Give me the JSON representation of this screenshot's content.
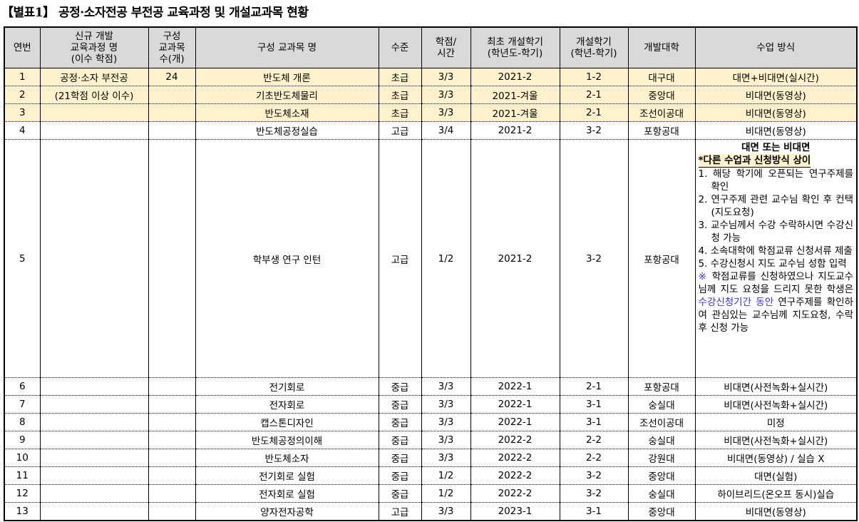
{
  "title": "【별표1】 공정·소자전공 부전공 교육과정 및 개설교과목 현황",
  "headers": {
    "no": "연번",
    "program": [
      "신규 개발",
      "교육과정 명",
      "(이수 학점)"
    ],
    "count": [
      "구성",
      "교과목",
      "수(개)"
    ],
    "course": "구성 교과목 명",
    "level": "수준",
    "credit": [
      "학점/",
      "시간"
    ],
    "first": [
      "최초 개설학기",
      "(학년도-학기)"
    ],
    "sem": [
      "개설학기",
      "(학년-학기)"
    ],
    "univ": "개발대학",
    "method": "수업 방식"
  },
  "program": {
    "name": "공정·소자 부전공",
    "credits": "(21학점 이상 이수)",
    "count": "24"
  },
  "rows": [
    {
      "no": "1",
      "course": "반도체 개론",
      "level": "초급",
      "credit": "3/3",
      "first": "2021-2",
      "sem": "1-2",
      "univ": "대구대",
      "method": "대면+비대면(실시간)"
    },
    {
      "no": "2",
      "course": "기초반도체물리",
      "level": "초급",
      "credit": "3/3",
      "first": "2021-겨울",
      "sem": "2-1",
      "univ": "중앙대",
      "method": "비대면(동영상)"
    },
    {
      "no": "3",
      "course": "반도체소재",
      "level": "초급",
      "credit": "3/3",
      "first": "2021-겨울",
      "sem": "2-1",
      "univ": "조선이공대",
      "method": "비대면(동영상)"
    },
    {
      "no": "4",
      "course": "반도체공정실습",
      "level": "고급",
      "credit": "3/4",
      "first": "2021-2",
      "sem": "3-2",
      "univ": "포항공대",
      "method": "비대면(동영상)"
    },
    {
      "no": "5",
      "course": "학부생 연구 인턴",
      "level": "고급",
      "credit": "1/2",
      "first": "2021-2",
      "sem": "3-2",
      "univ": "포항공대",
      "method": ""
    },
    {
      "no": "6",
      "course": "전기회로",
      "level": "중급",
      "credit": "3/3",
      "first": "2022-1",
      "sem": "2-1",
      "univ": "포항공대",
      "method": "비대면(사전녹화+실시간)"
    },
    {
      "no": "7",
      "course": "전자회로",
      "level": "중급",
      "credit": "3/3",
      "first": "2022-1",
      "sem": "3-1",
      "univ": "숭실대",
      "method": "비대면(사전녹화+실시간)"
    },
    {
      "no": "8",
      "course": "캡스톤디자인",
      "level": "중급",
      "credit": "3/3",
      "first": "2022-1",
      "sem": "3-1",
      "univ": "조선이공대",
      "method": "미정"
    },
    {
      "no": "9",
      "course": "반도체공정의이해",
      "level": "중급",
      "credit": "3/3",
      "first": "2022-2",
      "sem": "2-2",
      "univ": "숭실대",
      "method": "비대면(사전녹화+실시간)"
    },
    {
      "no": "10",
      "course": "반도체소자",
      "level": "중급",
      "credit": "3/3",
      "first": "2022-2",
      "sem": "2-2",
      "univ": "강원대",
      "method": "비대면(동영상) / 실습 X"
    },
    {
      "no": "11",
      "course": "전기회로 실험",
      "level": "중급",
      "credit": "1/2",
      "first": "2022-2",
      "sem": "3-2",
      "univ": "중앙대",
      "method": "대면(실험)"
    },
    {
      "no": "12",
      "course": "전자회로 실험",
      "level": "중급",
      "credit": "1/2",
      "first": "2022-2",
      "sem": "3-2",
      "univ": "숭실대",
      "method": "하이브리드(온오프 동시)실습"
    },
    {
      "no": "13",
      "course": "양자전자공학",
      "level": "고급",
      "credit": "3/3",
      "first": "2023-1",
      "sem": "3-1",
      "univ": "중앙대",
      "method": "비대면(동영상)"
    }
  ],
  "row5_method": {
    "head": "대면 또는 비대면",
    "note": "*다른 수업과 신청방식 상이",
    "steps": [
      "1. 해당 학기에 오픈되는 연구주제를 확인",
      "2. 연구주제 관련 교수님 확인 후 컨택(지도요청)",
      "3. 교수님께서 수강 수락하시면 수강신청 가능",
      "4. 소속대학에 학점교류 신청서류 제출",
      "5. 수강신청시 지도 교수님 성함 입력"
    ],
    "caution_a": "※",
    "caution_b": " 학점교류를 신청하였으나 지도교수님께 지도 요청을 드리지 못한 학생은 ",
    "caution_c": "수강신청기간 동안",
    "caution_d": " 연구주제를 확인하여 관심있는 교수님께 지도요청, 수락 후 신청 가능"
  },
  "colors": {
    "header_bg": "#d9d9d9",
    "highlight": "#fff2cc",
    "link_blue": "#3333ff"
  }
}
